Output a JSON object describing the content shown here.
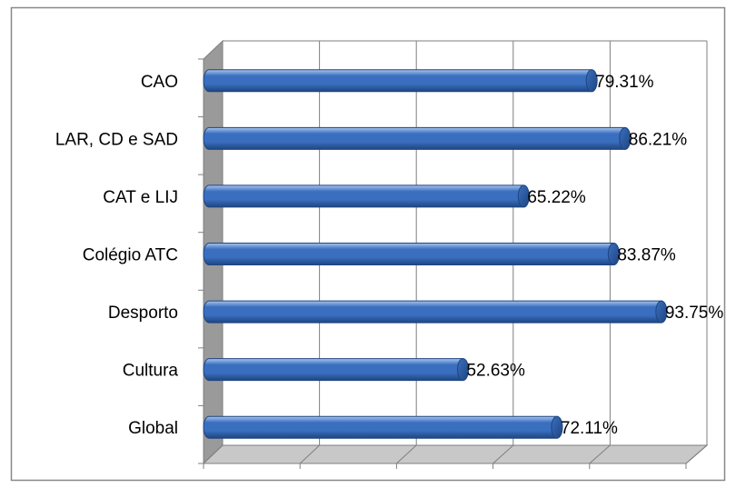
{
  "chart_data": {
    "type": "bar",
    "orientation": "horizontal",
    "three_d": true,
    "bar_shape": "cylinder",
    "title": "",
    "xlabel": "",
    "ylabel": "",
    "categories": [
      "CAO",
      "LAR, CD e SAD",
      "CAT e LIJ",
      "Colégio ATC",
      "Desporto",
      "Cultura",
      "Global"
    ],
    "values": [
      79.31,
      86.21,
      65.22,
      83.87,
      93.75,
      52.63,
      72.11
    ],
    "value_labels": [
      "79.31%",
      "86.21%",
      "65.22%",
      "83.87%",
      "93.75%",
      "52.63%",
      "72.11%"
    ],
    "xlim": [
      0,
      100
    ],
    "grid": true,
    "legend": "none",
    "colors": {
      "bar": "#3a6fc0",
      "bar_light": "#a9c6ee",
      "bar_dark": "#1e4580",
      "wall": "#ffffff",
      "floor": "#c8c8c8",
      "side_wall": "#9a9a9a",
      "grid": "#7f7f7f",
      "frame": "#7f7f7f"
    }
  }
}
